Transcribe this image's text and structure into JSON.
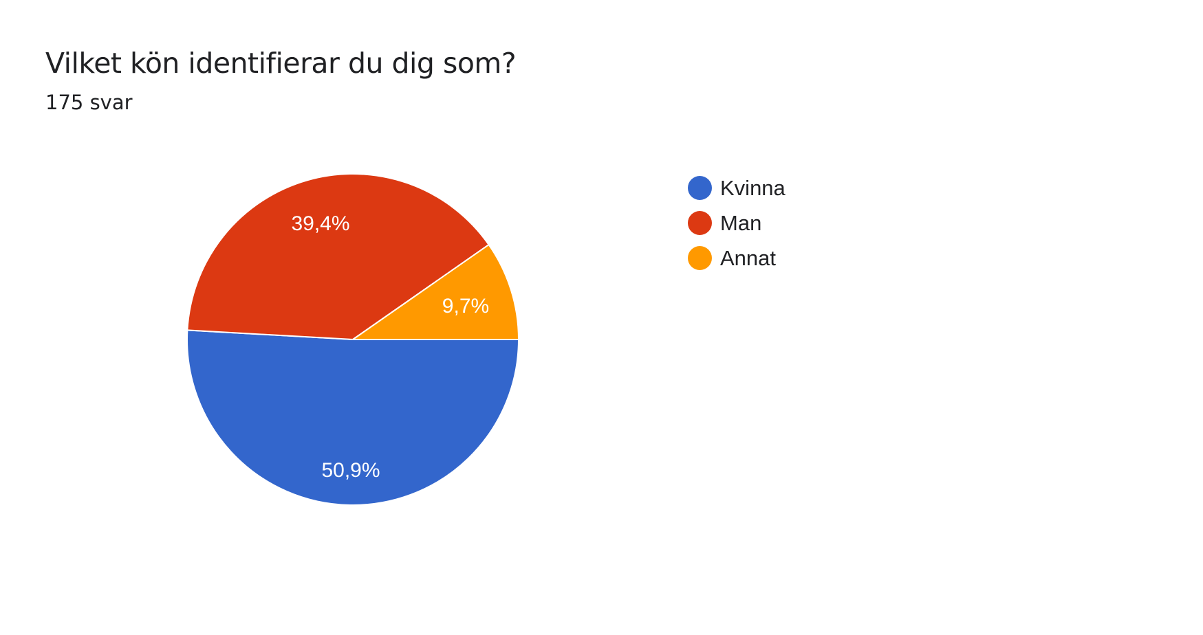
{
  "header": {
    "title": "Vilket kön identifierar du dig som?",
    "subtitle": "175 svar"
  },
  "legend": {
    "items": [
      {
        "label": "Kvinna",
        "color": "#3366cc"
      },
      {
        "label": "Man",
        "color": "#dc3912"
      },
      {
        "label": "Annat",
        "color": "#ff9900"
      }
    ]
  },
  "slices": {
    "kvinna": {
      "label": "50,9%"
    },
    "man": {
      "label": "39,4%"
    },
    "annat": {
      "label": "9,7%"
    }
  },
  "chart_data": {
    "type": "pie",
    "title": "Vilket kön identifierar du dig som?",
    "subtitle": "175 svar",
    "categories": [
      "Kvinna",
      "Man",
      "Annat"
    ],
    "values": [
      50.9,
      39.4,
      9.7
    ],
    "value_labels": [
      "50,9%",
      "39,4%",
      "9,7%"
    ],
    "colors": [
      "#3366cc",
      "#dc3912",
      "#ff9900"
    ],
    "legend_position": "right",
    "total_responses": 175
  }
}
